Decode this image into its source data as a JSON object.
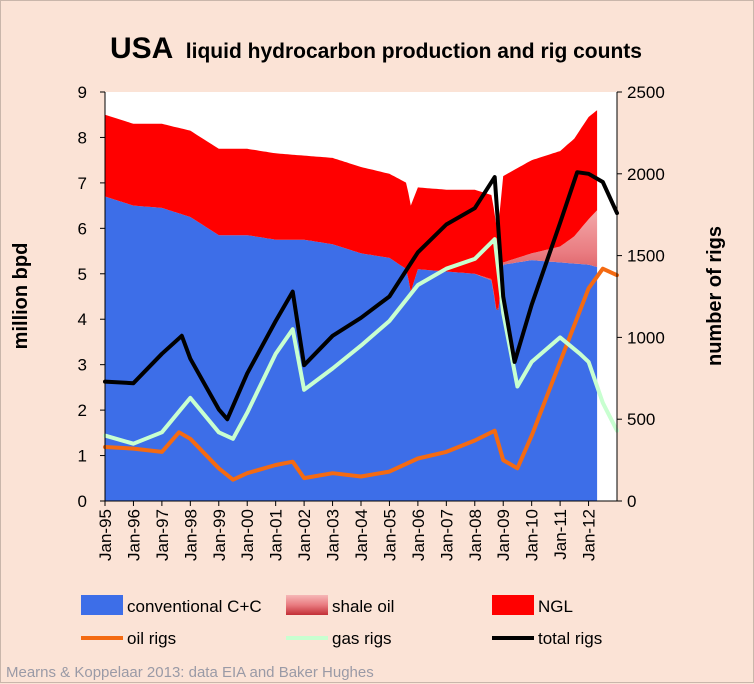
{
  "chart_data": {
    "type": "area",
    "title_main": "USA",
    "title_rest": "liquid hydrocarbon production and rig counts",
    "ylabel_left": "million bpd",
    "ylabel_right": "number of rigs",
    "ylim_left": [
      0,
      9
    ],
    "ylim_right": [
      0,
      2500
    ],
    "yticks_left": [
      "0",
      "1",
      "2",
      "3",
      "4",
      "5",
      "6",
      "7",
      "8",
      "9"
    ],
    "yticks_right": [
      "0",
      "500",
      "1000",
      "1500",
      "2000",
      "2500"
    ],
    "x_range": [
      1995.0,
      2013.0
    ],
    "x_ticks": [
      "Jan-95",
      "Jan-96",
      "Jan-97",
      "Jan-98",
      "Jan-99",
      "Jan-00",
      "Jan-01",
      "Jan-02",
      "Jan-03",
      "Jan-04",
      "Jan-05",
      "Jan-06",
      "Jan-07",
      "Jan-08",
      "Jan-09",
      "Jan-10",
      "Jan-11",
      "Jan-12"
    ],
    "area_series": [
      {
        "name": "conventional C+C",
        "color": "#3d6ee8",
        "axis": "left",
        "x": [
          1995.0,
          1996.0,
          1997.0,
          1998.0,
          1999.0,
          2000.0,
          2001.0,
          2002.0,
          2003.0,
          2004.0,
          2005.0,
          2005.6,
          2005.75,
          2006.0,
          2007.0,
          2008.0,
          2008.6,
          2008.8,
          2009.0,
          2010.0,
          2011.0,
          2012.0,
          2012.3
        ],
        "values": [
          6.7,
          6.5,
          6.45,
          6.25,
          5.85,
          5.85,
          5.75,
          5.75,
          5.65,
          5.45,
          5.35,
          5.1,
          4.6,
          5.1,
          5.05,
          5.0,
          4.85,
          4.0,
          5.2,
          5.3,
          5.25,
          5.2,
          5.15
        ]
      },
      {
        "name": "shale oil",
        "color": "#e8868b",
        "axis": "left",
        "x": [
          1995.0,
          2008.0,
          2009.0,
          2010.0,
          2011.0,
          2011.5,
          2012.0,
          2012.3
        ],
        "values": [
          0,
          0,
          0.05,
          0.15,
          0.35,
          0.6,
          1.0,
          1.25
        ]
      },
      {
        "name": "NGL",
        "color": "#ff0000",
        "axis": "left",
        "x": [
          1995.0,
          1996.0,
          1997.0,
          1998.0,
          1999.0,
          2000.0,
          2001.0,
          2002.0,
          2003.0,
          2004.0,
          2005.0,
          2005.6,
          2005.75,
          2006.0,
          2007.0,
          2008.0,
          2008.6,
          2008.8,
          2009.0,
          2010.0,
          2011.0,
          2011.5,
          2012.0,
          2012.3
        ],
        "values": [
          1.8,
          1.8,
          1.85,
          1.9,
          1.9,
          1.9,
          1.9,
          1.85,
          1.9,
          1.9,
          1.85,
          1.9,
          1.9,
          1.8,
          1.8,
          1.85,
          1.85,
          1.85,
          1.9,
          2.05,
          2.1,
          2.15,
          2.25,
          2.2
        ]
      }
    ],
    "line_series": [
      {
        "name": "oil rigs",
        "color": "#f46a12",
        "axis": "right",
        "x": [
          1995.0,
          1996.0,
          1997.0,
          1997.6,
          1998.0,
          1999.0,
          1999.5,
          2000.0,
          2001.0,
          2001.6,
          2002.0,
          2003.0,
          2004.0,
          2005.0,
          2006.0,
          2007.0,
          2008.0,
          2008.7,
          2009.0,
          2009.5,
          2010.0,
          2011.0,
          2012.0,
          2012.5,
          2013.0
        ],
        "values": [
          330,
          320,
          300,
          420,
          380,
          200,
          130,
          170,
          220,
          240,
          140,
          170,
          150,
          180,
          260,
          300,
          370,
          430,
          250,
          200,
          400,
          850,
          1300,
          1420,
          1380
        ]
      },
      {
        "name": "gas rigs",
        "color": "#c8ffd0",
        "axis": "right",
        "x": [
          1995.0,
          1996.0,
          1997.0,
          1998.0,
          1999.0,
          1999.5,
          2000.0,
          2001.0,
          2001.6,
          2002.0,
          2003.0,
          2004.0,
          2005.0,
          2006.0,
          2007.0,
          2008.0,
          2008.7,
          2009.0,
          2009.5,
          2010.0,
          2011.0,
          2011.7,
          2012.0,
          2012.5,
          2013.0
        ],
        "values": [
          400,
          350,
          420,
          630,
          420,
          380,
          540,
          900,
          1050,
          680,
          810,
          950,
          1100,
          1320,
          1420,
          1480,
          1600,
          1150,
          700,
          850,
          1000,
          900,
          850,
          600,
          430
        ]
      },
      {
        "name": "total rigs",
        "color": "#000000",
        "axis": "right",
        "x": [
          1995.0,
          1996.0,
          1997.0,
          1997.7,
          1998.0,
          1999.0,
          1999.3,
          2000.0,
          2001.0,
          2001.6,
          2002.0,
          2003.0,
          2004.0,
          2005.0,
          2006.0,
          2007.0,
          2008.0,
          2008.7,
          2009.0,
          2009.4,
          2010.0,
          2011.0,
          2011.6,
          2012.0,
          2012.5,
          2013.0
        ],
        "values": [
          730,
          720,
          900,
          1010,
          870,
          560,
          500,
          780,
          1100,
          1280,
          830,
          1010,
          1120,
          1250,
          1520,
          1690,
          1790,
          1980,
          1250,
          850,
          1200,
          1700,
          2010,
          2000,
          1950,
          1760
        ]
      }
    ],
    "legend": [
      "conventional C+C",
      "shale oil",
      "NGL",
      "oil rigs",
      "gas rigs",
      "total rigs"
    ],
    "source": "Mearns & Koppelaar 2013: data EIA and Baker Hughes"
  }
}
